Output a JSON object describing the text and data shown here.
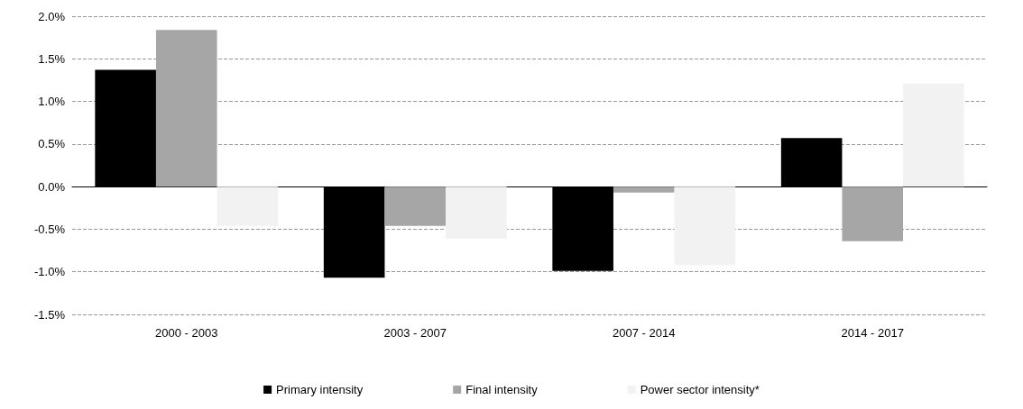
{
  "chart_data": {
    "type": "bar",
    "categories": [
      "2000 - 2003",
      "2003 - 2007",
      "2007 - 2014",
      "2014 - 2017"
    ],
    "series": [
      {
        "name": "Primary intensity",
        "color": "#000000",
        "values": [
          1.37,
          -1.07,
          -0.99,
          0.57
        ]
      },
      {
        "name": "Final intensity",
        "color": "#a6a6a6",
        "values": [
          1.84,
          -0.46,
          -0.07,
          -0.64
        ]
      },
      {
        "name": "Power sector intensity*",
        "color": "#f2f2f2",
        "values": [
          -0.46,
          -0.61,
          -0.92,
          1.21
        ]
      }
    ],
    "ylim": [
      -1.5,
      2
    ],
    "yticks": [
      {
        "value": -1.5,
        "label": "-1.5%"
      },
      {
        "value": -1,
        "label": "-1.0%"
      },
      {
        "value": -0.5,
        "label": "-0.5%"
      },
      {
        "value": 0,
        "label": "0.0%"
      },
      {
        "value": 0.5,
        "label": "0.5%"
      },
      {
        "value": 1,
        "label": "1.0%"
      },
      {
        "value": 1.5,
        "label": "1.5%"
      },
      {
        "value": 2,
        "label": "2.0%"
      }
    ],
    "grid": "y",
    "legend": "bottom"
  }
}
